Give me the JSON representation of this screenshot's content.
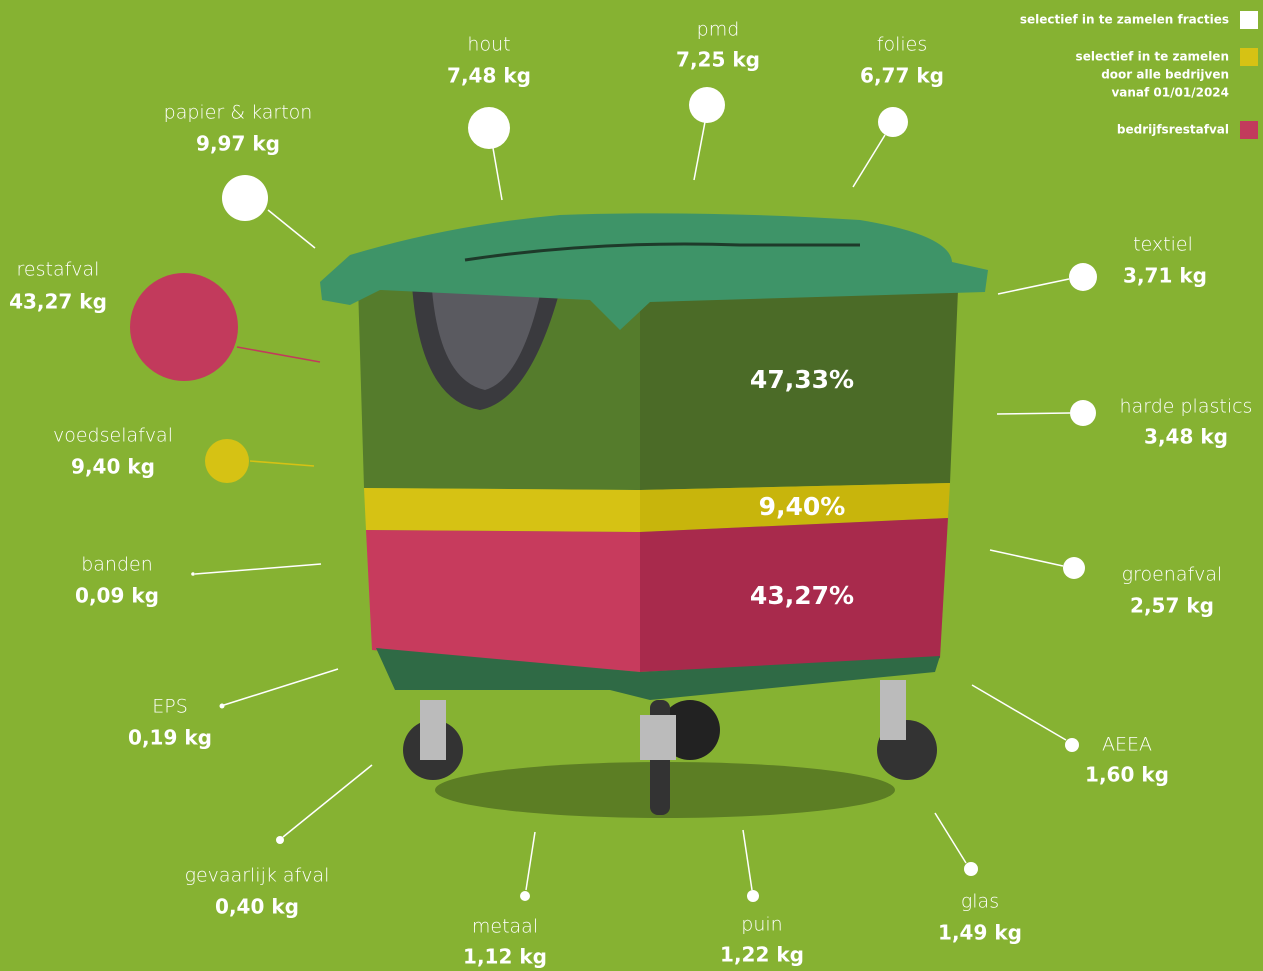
{
  "legend": [
    {
      "lines": [
        "selectief in te zamelen fracties"
      ],
      "color": "#ffffff"
    },
    {
      "lines": [
        "selectief in te zamelen",
        "door alle bedrijven",
        "vanaf 01/01/2024"
      ],
      "color": "#d6c214"
    },
    {
      "lines": [
        "bedrijfsrestafval"
      ],
      "color": "#c23a5c"
    }
  ],
  "fractions": [
    {
      "label": "papier & karton",
      "amount": "9,97 kg",
      "color": "#ffffff"
    },
    {
      "label": "hout",
      "amount": "7,48 kg",
      "color": "#ffffff"
    },
    {
      "label": "pmd",
      "amount": "7,25 kg",
      "color": "#ffffff"
    },
    {
      "label": "folies",
      "amount": "6,77 kg",
      "color": "#ffffff"
    },
    {
      "label": "textiel",
      "amount": "3,71 kg",
      "color": "#ffffff"
    },
    {
      "label": "harde plastics",
      "amount": "3,48 kg",
      "color": "#ffffff"
    },
    {
      "label": "groenafval",
      "amount": "2,57 kg",
      "color": "#ffffff"
    },
    {
      "label": "AEEA",
      "amount": "1,60 kg",
      "color": "#ffffff"
    },
    {
      "label": "glas",
      "amount": "1,49 kg",
      "color": "#ffffff"
    },
    {
      "label": "puin",
      "amount": "1,22 kg",
      "color": "#ffffff"
    },
    {
      "label": "metaal",
      "amount": "1,12 kg",
      "color": "#ffffff"
    },
    {
      "label": "gevaarlijk afval",
      "amount": "0,40 kg",
      "color": "#ffffff"
    },
    {
      "label": "EPS",
      "amount": "0,19 kg",
      "color": "#ffffff"
    },
    {
      "label": "banden",
      "amount": "0,09 kg",
      "color": "#ffffff"
    },
    {
      "label": "voedselafval",
      "amount": "9,40 kg",
      "color": "#d6c214"
    },
    {
      "label": "restafval",
      "amount": "43,27 kg",
      "color": "#c23a5c"
    }
  ],
  "bin_segments": [
    {
      "label": "47,33%"
    },
    {
      "label": "9,40%"
    },
    {
      "label": "43,27%"
    }
  ]
}
